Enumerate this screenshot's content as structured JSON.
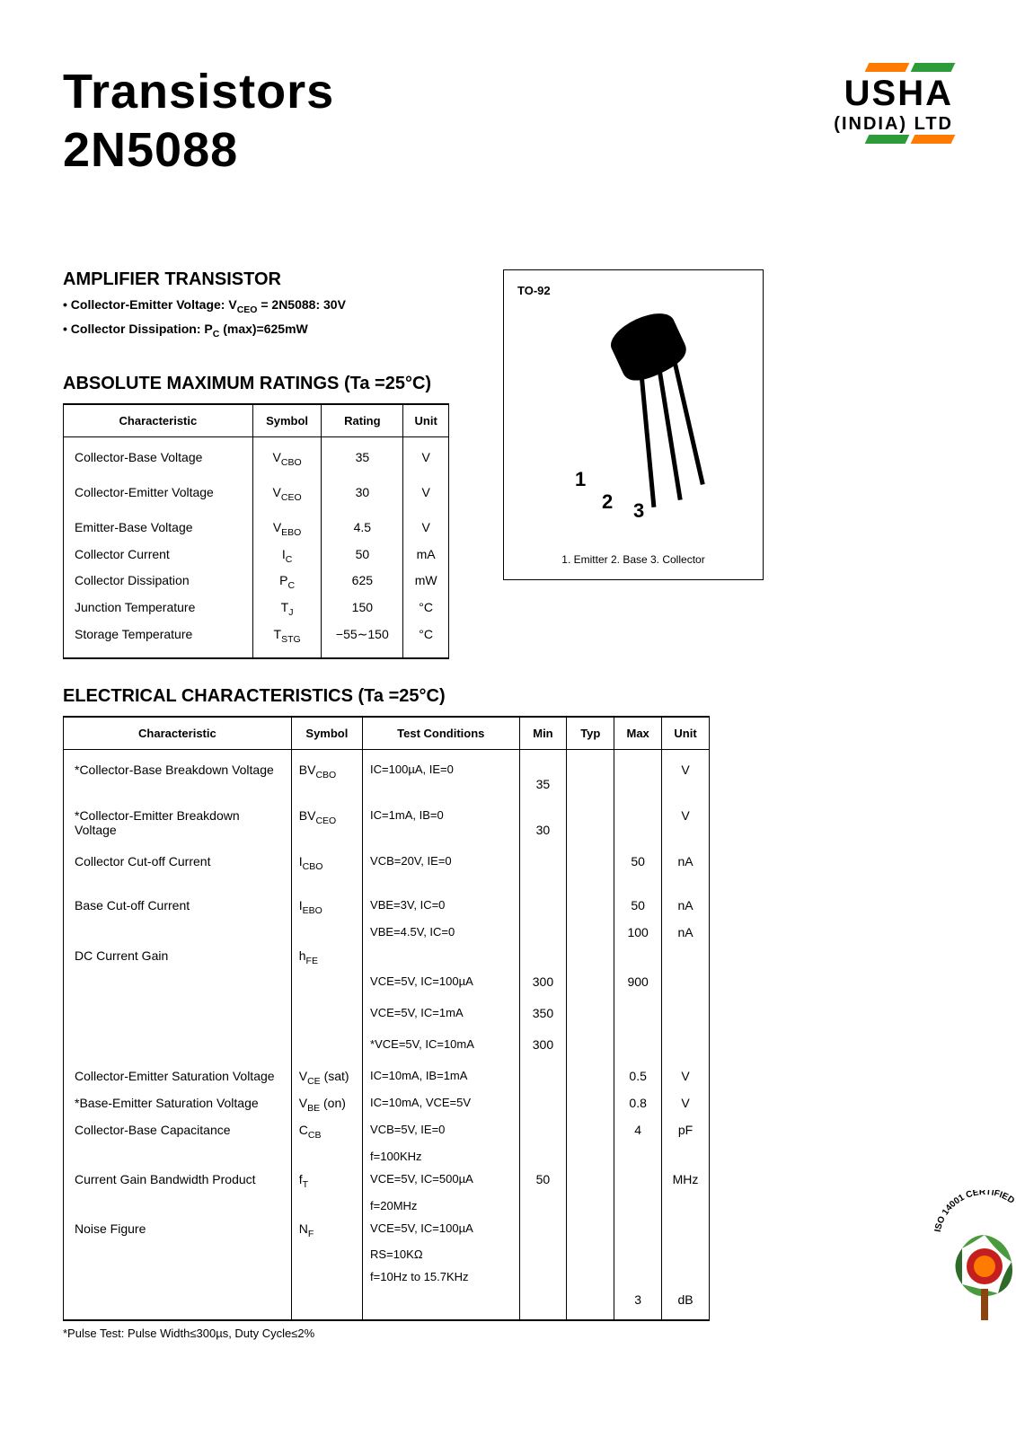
{
  "header": {
    "title_line1": "Transistors",
    "title_line2": "2N5088",
    "logo_name": "USHA",
    "logo_sub": "(INDIA) LTD",
    "stripe_colors": [
      "#ff7a00",
      "#2e9b3a"
    ]
  },
  "amplifier": {
    "title": "AMPLIFIER TRANSISTOR",
    "bullet1_label": "Collector-Emitter Voltage: V",
    "bullet1_sub": "CEO",
    "bullet1_rest": " = 2N5088: 30V",
    "bullet2_label": "Collector Dissipation: P",
    "bullet2_sub": "C",
    "bullet2_rest": " (max)=625mW"
  },
  "package": {
    "label": "TO-92",
    "pin1": "1",
    "pin2": "2",
    "pin3": "3",
    "legend": "1. Emitter 2. Base 3. Collector"
  },
  "ratings": {
    "title": "ABSOLUTE MAXIMUM RATINGS (Ta =25°C)",
    "headers": [
      "Characteristic",
      "Symbol",
      "Rating",
      "Unit"
    ],
    "rows": [
      {
        "c": "Collector-Base Voltage",
        "s": "V",
        "ss": "CBO",
        "r": "35",
        "u": "V",
        "gap": true
      },
      {
        "c": "Collector-Emitter Voltage",
        "s": "V",
        "ss": "CEO",
        "r": "30",
        "u": "V",
        "gap": true
      },
      {
        "c": "Emitter-Base Voltage",
        "s": "V",
        "ss": "EBO",
        "r": "4.5",
        "u": "V",
        "gap": true
      },
      {
        "c": "Collector Current",
        "s": "I",
        "ss": "C",
        "r": "50",
        "u": "mA"
      },
      {
        "c": "Collector Dissipation",
        "s": "P",
        "ss": "C",
        "r": "625",
        "u": "mW"
      },
      {
        "c": "Junction Temperature",
        "s": "T",
        "ss": "J",
        "r": "150",
        "u": "°C"
      },
      {
        "c": "Storage Temperature",
        "s": "T",
        "ss": "STG",
        "r": "−55∼150",
        "u": "°C",
        "last": true
      }
    ]
  },
  "elec": {
    "title": "ELECTRICAL CHARACTERISTICS (Ta =25°C)",
    "headers": [
      "Characteristic",
      "Symbol",
      "Test Conditions",
      "Min",
      "Typ",
      "Max",
      "Unit"
    ],
    "rows": [
      {
        "c": "*Collector-Base Breakdown Voltage",
        "s": "BV",
        "ss": "CBO",
        "cond": "IC=100µA, IE=0",
        "min": "35",
        "typ": "",
        "max": "",
        "u": "V",
        "gap": true,
        "minrow2": true
      },
      {
        "c": "*Collector-Emitter Breakdown Voltage",
        "s": "BV",
        "ss": "CEO",
        "cond": "IC=1mA, IB=0",
        "min": "30",
        "typ": "",
        "max": "",
        "u": "V",
        "gap": true,
        "minrow2": true
      },
      {
        "c": "Collector Cut-off Current",
        "s": "I",
        "ss": "CBO",
        "cond": "VCB=20V, IE=0",
        "min": "",
        "typ": "",
        "max": "50",
        "u": "nA",
        "gap": true,
        "minrow2": true
      },
      {
        "c": "Base Cut-off Current",
        "s": "I",
        "ss": "EBO",
        "cond": "VBE=3V, IC=0",
        "min": "",
        "typ": "",
        "max": "50",
        "u": "nA",
        "gap": true
      },
      {
        "c": "",
        "s": "",
        "ss": "",
        "cond": "VBE=4.5V, IC=0",
        "min": "",
        "typ": "",
        "max": "100",
        "u": "nA"
      },
      {
        "c": "DC Current Gain",
        "s": "h",
        "ss": "FE",
        "cond": "",
        "min": "",
        "typ": "",
        "max": "",
        "u": ""
      },
      {
        "c": "",
        "s": "",
        "ss": "",
        "cond": "VCE=5V, IC=100µA",
        "min": "300",
        "typ": "",
        "max": "900",
        "u": ""
      },
      {
        "c": "",
        "s": "",
        "ss": "",
        "cond": "VCE=5V, IC=1mA",
        "min": "350",
        "typ": "",
        "max": "",
        "u": "",
        "gap": true
      },
      {
        "c": "",
        "s": "",
        "ss": "",
        "cond": "*VCE=5V, IC=10mA",
        "min": "300",
        "typ": "",
        "max": "",
        "u": "",
        "gap": true
      },
      {
        "c": "Collector-Emitter Saturation Voltage",
        "s": "V",
        "ss": "CE",
        "sext": " (sat)",
        "cond": "IC=10mA, IB=1mA",
        "min": "",
        "typ": "",
        "max": "0.5",
        "u": "V",
        "gap": true
      },
      {
        "c": "*Base-Emitter Saturation Voltage",
        "s": "V",
        "ss": "BE",
        "sext": " (on)",
        "cond": "IC=10mA, VCE=5V",
        "min": "",
        "typ": "",
        "max": "0.8",
        "u": "V"
      },
      {
        "c": "Collector-Base Capacitance",
        "s": "C",
        "ss": "CB",
        "cond": "VCB=5V, IE=0",
        "min": "",
        "typ": "",
        "max": "4",
        "u": "pF"
      },
      {
        "c": "",
        "s": "",
        "ss": "",
        "cond": "f=100KHz",
        "min": "",
        "typ": "",
        "max": "",
        "u": ""
      },
      {
        "c": "Current Gain Bandwidth Product",
        "s": "f",
        "ss": "T",
        "cond": "VCE=5V, IC=500µA",
        "min": "50",
        "typ": "",
        "max": "",
        "u": "MHz"
      },
      {
        "c": "",
        "s": "",
        "ss": "",
        "cond": "f=20MHz",
        "min": "",
        "typ": "",
        "max": "",
        "u": ""
      },
      {
        "c": "Noise Figure",
        "s": "N",
        "ss": "F",
        "cond": "VCE=5V, IC=100µA",
        "min": "",
        "typ": "",
        "max": "",
        "u": ""
      },
      {
        "c": "",
        "s": "",
        "ss": "",
        "cond": "RS=10KΩ",
        "min": "",
        "typ": "",
        "max": "",
        "u": ""
      },
      {
        "c": "",
        "s": "",
        "ss": "",
        "cond": "f=10Hz to 15.7KHz",
        "min": "",
        "typ": "",
        "max": "",
        "u": ""
      },
      {
        "c": "",
        "s": "",
        "ss": "",
        "cond": "",
        "min": "",
        "typ": "",
        "max": "3",
        "u": "dB",
        "last": true
      }
    ],
    "footnote": "*Pulse Test: Pulse Width≤300µs, Duty Cycle≤2%"
  },
  "cert": {
    "top_text": "ISO 14001 CERTIFIED",
    "colors": {
      "leaf_green": "#4a9b3e",
      "leaf_dark": "#2e6b28",
      "center_red": "#c41e1e",
      "center_orange": "#ff7a00"
    }
  }
}
